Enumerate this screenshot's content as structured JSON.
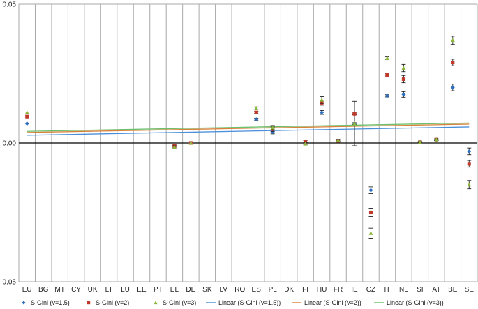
{
  "chart_data": {
    "type": "scatter",
    "title": "",
    "xlabel": "",
    "ylabel": "",
    "ylim": [
      -0.05,
      0.05
    ],
    "yticks": [
      "0.05",
      "0.00",
      "-0.05"
    ],
    "grid": "vertical",
    "legend_position": "bottom",
    "categories": [
      "EU",
      "BG",
      "MT",
      "CY",
      "UK",
      "LT",
      "LU",
      "EE",
      "PT",
      "EL",
      "DE",
      "SK",
      "LV",
      "RO",
      "ES",
      "PL",
      "DK",
      "FI",
      "HU",
      "FR",
      "IE",
      "CZ",
      "IT",
      "NL",
      "SI",
      "AT",
      "BE",
      "SE"
    ],
    "series": [
      {
        "name": "S-Gini (v=1.5)",
        "marker": "diamond",
        "color": "#2e6fc0",
        "values": [
          0.007,
          null,
          null,
          null,
          null,
          null,
          null,
          null,
          null,
          -0.0015,
          0.0,
          null,
          null,
          null,
          0.0085,
          0.004,
          null,
          0.0,
          0.011,
          0.0008,
          0.007,
          -0.017,
          0.017,
          0.0175,
          0.0003,
          0.0012,
          0.02,
          -0.003
        ],
        "errors": [
          0,
          null,
          null,
          null,
          null,
          null,
          null,
          null,
          null,
          0.0005,
          0,
          null,
          null,
          null,
          0.0004,
          0.0007,
          null,
          0.0003,
          0.0007,
          0.0003,
          0.008,
          0.0012,
          0.0004,
          0.001,
          0.0002,
          0.0003,
          0.0012,
          0.0012
        ]
      },
      {
        "name": "S-Gini (v=2)",
        "marker": "square",
        "color": "#c0392b",
        "values": [
          0.0095,
          null,
          null,
          null,
          null,
          null,
          null,
          null,
          null,
          -0.001,
          0.0,
          null,
          null,
          null,
          0.011,
          0.005,
          null,
          0.0005,
          0.0145,
          0.0008,
          0.0105,
          -0.025,
          0.0245,
          0.023,
          0.0003,
          0.0012,
          0.029,
          -0.0075
        ],
        "errors": [
          0,
          null,
          null,
          null,
          null,
          null,
          null,
          null,
          null,
          0.0005,
          0,
          null,
          null,
          null,
          0.0004,
          0.0008,
          null,
          0.0004,
          0.0009,
          0.0003,
          0.0003,
          0.0015,
          0.0004,
          0.0013,
          0.0002,
          0.0003,
          0.0012,
          0.0012
        ]
      },
      {
        "name": "S-Gini (v=3)",
        "marker": "triangle",
        "color": "#8bb63b",
        "values": [
          0.011,
          null,
          null,
          null,
          null,
          null,
          null,
          null,
          null,
          -0.0015,
          0.0,
          null,
          null,
          null,
          0.0125,
          0.0055,
          null,
          -0.0003,
          0.0155,
          0.001,
          0.007,
          -0.0325,
          0.0305,
          0.027,
          0.0003,
          0.0012,
          0.037,
          -0.015
        ],
        "errors": [
          0,
          null,
          null,
          null,
          null,
          null,
          null,
          null,
          null,
          0.0005,
          0,
          null,
          null,
          null,
          0.0005,
          0.0008,
          null,
          0.0004,
          0.0012,
          0.0003,
          0.0003,
          0.0018,
          0.0005,
          0.0013,
          0.0002,
          0.0003,
          0.0015,
          0.0015
        ]
      },
      {
        "name": "Linear (S-Gini (v=1.5))",
        "type": "line",
        "color": "#4a90d9",
        "y_start": 0.0028,
        "y_end": 0.0058
      },
      {
        "name": "Linear (S-Gini (v=2))",
        "type": "line",
        "color": "#d9823b",
        "y_start": 0.0038,
        "y_end": 0.0068
      },
      {
        "name": "Linear (S-Gini (v=3))",
        "type": "line",
        "color": "#6dbf6d",
        "y_start": 0.0042,
        "y_end": 0.0072
      }
    ]
  }
}
